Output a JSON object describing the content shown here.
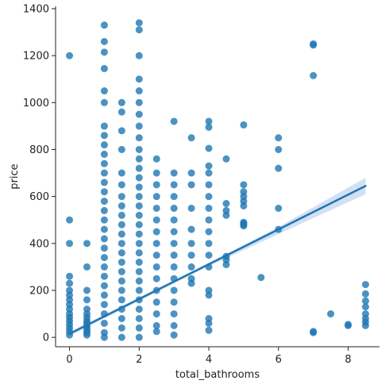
{
  "chart_data": {
    "type": "scatter",
    "title": "",
    "xlabel": "total_bathrooms",
    "ylabel": "price",
    "xlim": [
      -0.4,
      8.9
    ],
    "ylim": [
      -40,
      1410
    ],
    "xticks": [
      0,
      2,
      4,
      6,
      8
    ],
    "yticks": [
      0,
      200,
      400,
      600,
      800,
      1000,
      1200,
      1400
    ],
    "grid": false,
    "legend": "none",
    "colors": {
      "point": "#1f77b4",
      "line": "#1f77b4",
      "band": "#aec7e8"
    },
    "series": [
      {
        "kind": "points",
        "points": [
          [
            0,
            1200
          ],
          [
            0,
            500
          ],
          [
            0,
            400
          ],
          [
            0,
            260
          ],
          [
            0,
            230
          ],
          [
            0,
            200
          ],
          [
            0,
            180
          ],
          [
            0,
            160
          ],
          [
            0,
            140
          ],
          [
            0,
            120
          ],
          [
            0,
            100
          ],
          [
            0,
            85
          ],
          [
            0,
            70
          ],
          [
            0,
            55
          ],
          [
            0,
            40
          ],
          [
            0,
            25
          ],
          [
            0,
            10
          ],
          [
            0.5,
            400
          ],
          [
            0.5,
            300
          ],
          [
            0.5,
            200
          ],
          [
            0.5,
            160
          ],
          [
            0.5,
            120
          ],
          [
            0.5,
            100
          ],
          [
            0.5,
            85
          ],
          [
            0.5,
            70
          ],
          [
            0.5,
            60
          ],
          [
            0.5,
            50
          ],
          [
            0.5,
            40
          ],
          [
            0.5,
            30
          ],
          [
            0.5,
            20
          ],
          [
            0.5,
            10
          ],
          [
            1,
            1330
          ],
          [
            1,
            1260
          ],
          [
            1,
            1215
          ],
          [
            1,
            1145
          ],
          [
            1,
            1050
          ],
          [
            1,
            1000
          ],
          [
            1,
            900
          ],
          [
            1,
            860
          ],
          [
            1,
            820
          ],
          [
            1,
            780
          ],
          [
            1,
            740
          ],
          [
            1,
            700
          ],
          [
            1,
            660
          ],
          [
            1,
            620
          ],
          [
            1,
            580
          ],
          [
            1,
            540
          ],
          [
            1,
            500
          ],
          [
            1,
            460
          ],
          [
            1,
            420
          ],
          [
            1,
            380
          ],
          [
            1,
            340
          ],
          [
            1,
            300
          ],
          [
            1,
            260
          ],
          [
            1,
            220
          ],
          [
            1,
            180
          ],
          [
            1,
            140
          ],
          [
            1,
            100
          ],
          [
            1,
            60
          ],
          [
            1,
            20
          ],
          [
            1,
            0
          ],
          [
            1.5,
            1000
          ],
          [
            1.5,
            960
          ],
          [
            1.5,
            880
          ],
          [
            1.5,
            800
          ],
          [
            1.5,
            700
          ],
          [
            1.5,
            650
          ],
          [
            1.5,
            600
          ],
          [
            1.5,
            560
          ],
          [
            1.5,
            520
          ],
          [
            1.5,
            480
          ],
          [
            1.5,
            440
          ],
          [
            1.5,
            400
          ],
          [
            1.5,
            360
          ],
          [
            1.5,
            320
          ],
          [
            1.5,
            280
          ],
          [
            1.5,
            240
          ],
          [
            1.5,
            200
          ],
          [
            1.5,
            160
          ],
          [
            1.5,
            120
          ],
          [
            1.5,
            80
          ],
          [
            1.5,
            40
          ],
          [
            1.5,
            0
          ],
          [
            2,
            1340
          ],
          [
            2,
            1310
          ],
          [
            2,
            1200
          ],
          [
            2,
            1100
          ],
          [
            2,
            1050
          ],
          [
            2,
            1000
          ],
          [
            2,
            950
          ],
          [
            2,
            900
          ],
          [
            2,
            850
          ],
          [
            2,
            800
          ],
          [
            2,
            760
          ],
          [
            2,
            720
          ],
          [
            2,
            680
          ],
          [
            2,
            640
          ],
          [
            2,
            600
          ],
          [
            2,
            560
          ],
          [
            2,
            520
          ],
          [
            2,
            480
          ],
          [
            2,
            440
          ],
          [
            2,
            400
          ],
          [
            2,
            360
          ],
          [
            2,
            320
          ],
          [
            2,
            280
          ],
          [
            2,
            240
          ],
          [
            2,
            200
          ],
          [
            2,
            160
          ],
          [
            2,
            120
          ],
          [
            2,
            80
          ],
          [
            2,
            40
          ],
          [
            2,
            0
          ],
          [
            2.5,
            760
          ],
          [
            2.5,
            700
          ],
          [
            2.5,
            650
          ],
          [
            2.5,
            600
          ],
          [
            2.5,
            550
          ],
          [
            2.5,
            500
          ],
          [
            2.5,
            450
          ],
          [
            2.5,
            400
          ],
          [
            2.5,
            350
          ],
          [
            2.5,
            300
          ],
          [
            2.5,
            250
          ],
          [
            2.5,
            200
          ],
          [
            2.5,
            150
          ],
          [
            2.5,
            100
          ],
          [
            2.5,
            50
          ],
          [
            2.5,
            25
          ],
          [
            3,
            920
          ],
          [
            3,
            700
          ],
          [
            3,
            650
          ],
          [
            3,
            600
          ],
          [
            3,
            550
          ],
          [
            3,
            500
          ],
          [
            3,
            450
          ],
          [
            3,
            400
          ],
          [
            3,
            350
          ],
          [
            3,
            300
          ],
          [
            3,
            250
          ],
          [
            3,
            200
          ],
          [
            3,
            150
          ],
          [
            3,
            100
          ],
          [
            3,
            50
          ],
          [
            3,
            10
          ],
          [
            3.5,
            850
          ],
          [
            3.5,
            700
          ],
          [
            3.5,
            650
          ],
          [
            3.5,
            550
          ],
          [
            3.5,
            460
          ],
          [
            3.5,
            400
          ],
          [
            3.5,
            350
          ],
          [
            3.5,
            300
          ],
          [
            3.5,
            250
          ],
          [
            3.5,
            230
          ],
          [
            4,
            920
          ],
          [
            4,
            895
          ],
          [
            4,
            805
          ],
          [
            4,
            730
          ],
          [
            4,
            700
          ],
          [
            4,
            650
          ],
          [
            4,
            600
          ],
          [
            4,
            550
          ],
          [
            4,
            500
          ],
          [
            4,
            450
          ],
          [
            4,
            400
          ],
          [
            4,
            350
          ],
          [
            4,
            300
          ],
          [
            4,
            200
          ],
          [
            4,
            180
          ],
          [
            4,
            80
          ],
          [
            4,
            60
          ],
          [
            4,
            30
          ],
          [
            4.5,
            760
          ],
          [
            4.5,
            570
          ],
          [
            4.5,
            540
          ],
          [
            4.5,
            520
          ],
          [
            4.5,
            345
          ],
          [
            4.5,
            330
          ],
          [
            4.5,
            310
          ],
          [
            5,
            905
          ],
          [
            5,
            650
          ],
          [
            5,
            620
          ],
          [
            5,
            600
          ],
          [
            5,
            580
          ],
          [
            5,
            560
          ],
          [
            5,
            490
          ],
          [
            5,
            485
          ],
          [
            5,
            480
          ],
          [
            5,
            475
          ],
          [
            5.5,
            255
          ],
          [
            6,
            850
          ],
          [
            6,
            800
          ],
          [
            6,
            720
          ],
          [
            6,
            550
          ],
          [
            6,
            460
          ],
          [
            7,
            1250
          ],
          [
            7,
            1245
          ],
          [
            7,
            1115
          ],
          [
            7,
            25
          ],
          [
            7,
            20
          ],
          [
            7.5,
            100
          ],
          [
            8,
            55
          ],
          [
            8,
            50
          ],
          [
            8.5,
            225
          ],
          [
            8.5,
            185
          ],
          [
            8.5,
            155
          ],
          [
            8.5,
            130
          ],
          [
            8.5,
            100
          ],
          [
            8.5,
            80
          ],
          [
            8.5,
            65
          ],
          [
            8.5,
            50
          ]
        ]
      },
      {
        "kind": "regression",
        "line": [
          [
            0,
            15
          ],
          [
            8.5,
            645
          ]
        ],
        "band_upper": [
          [
            0,
            24
          ],
          [
            2,
            170
          ],
          [
            4,
            317
          ],
          [
            6,
            470
          ],
          [
            8.5,
            680
          ]
        ],
        "band_lower": [
          [
            0,
            6
          ],
          [
            2,
            156
          ],
          [
            4,
            303
          ],
          [
            6,
            440
          ],
          [
            8.5,
            610
          ]
        ]
      }
    ]
  }
}
